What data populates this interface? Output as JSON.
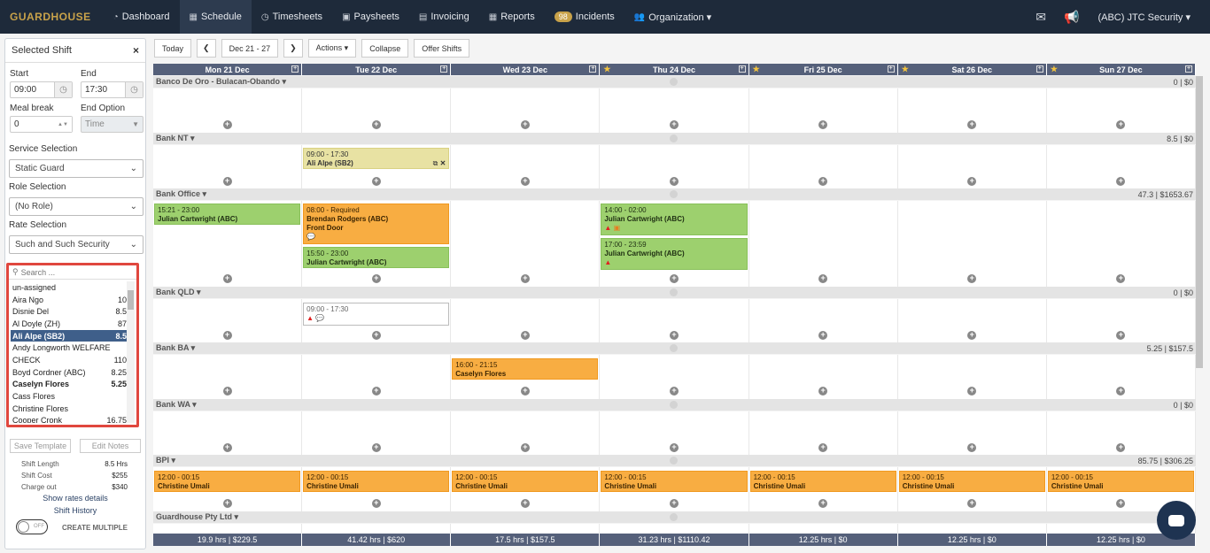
{
  "nav": {
    "logo": "GUARDHOUSE",
    "items": [
      {
        "label": "Dashboard",
        "icon": "dashboard-icon",
        "glyph": "◔"
      },
      {
        "label": "Schedule",
        "icon": "calendar-icon",
        "glyph": "▦"
      },
      {
        "label": "Timesheets",
        "icon": "clock-icon",
        "glyph": "◷"
      },
      {
        "label": "Paysheets",
        "icon": "money-icon",
        "glyph": "▣"
      },
      {
        "label": "Invoicing",
        "icon": "invoice-icon",
        "glyph": "▤"
      },
      {
        "label": "Reports",
        "icon": "table-icon",
        "glyph": "▦"
      },
      {
        "label": "Incidents",
        "badge": "98"
      },
      {
        "label": "Organization ▾",
        "icon": "users-icon",
        "glyph": "👥"
      }
    ],
    "company": "(ABC) JTC Security ▾"
  },
  "sidebar": {
    "title": "Selected Shift",
    "start_label": "Start",
    "start": "09:00",
    "end_label": "End",
    "end": "17:30",
    "meal_label": "Meal break",
    "meal": "0",
    "endopt_label": "End Option",
    "endopt": "Time",
    "service_label": "Service Selection",
    "service": "Static Guard",
    "role_label": "Role Selection",
    "role": "(No Role)",
    "rate_label": "Rate Selection",
    "rate": "Such and Such Security",
    "search_placeholder": "Search ...",
    "employees": [
      {
        "name": "un-assigned",
        "hours": ""
      },
      {
        "name": "Aira Ngo",
        "hours": "10"
      },
      {
        "name": "Disnie Del",
        "hours": "8.5"
      },
      {
        "name": "Al Doyle (ZH)",
        "hours": "87"
      },
      {
        "name": "Ali Alpe (SB2)",
        "hours": "8.5",
        "selected": true
      },
      {
        "name": "Andy Longworth WELFARE",
        "hours": ""
      },
      {
        "name": "CHECK",
        "hours": "110"
      },
      {
        "name": "Boyd Cordner (ABC)",
        "hours": "8.25"
      },
      {
        "name": "Caselyn Flores",
        "hours": "5.25",
        "bold": true
      },
      {
        "name": "Cass Flores",
        "hours": ""
      },
      {
        "name": "Christine Flores",
        "hours": ""
      },
      {
        "name": "Cooper Cronk",
        "hours": "16.75"
      }
    ],
    "save_template": "Save Template",
    "edit_notes": "Edit Notes",
    "shift_length_label": "Shift Length",
    "shift_length": "8.5 Hrs",
    "shift_cost_label": "Shift Cost",
    "shift_cost": "$255",
    "charge_label": "Charge out",
    "charge": "$340",
    "show_rates": "Show rates details",
    "history": "Shift History",
    "toggle": "OFF",
    "create_multiple": "CREATE MULTIPLE"
  },
  "toolbar": {
    "today": "Today",
    "range": "Dec 21 - 27",
    "actions": "Actions ▾",
    "collapse": "Collapse",
    "offer": "Offer Shifts"
  },
  "days": [
    {
      "label": "Mon 21 Dec",
      "star": false
    },
    {
      "label": "Tue 22 Dec",
      "star": false
    },
    {
      "label": "Wed 23 Dec",
      "star": false
    },
    {
      "label": "Thu 24 Dec",
      "star": true
    },
    {
      "label": "Fri 25 Dec",
      "star": true
    },
    {
      "label": "Sat 26 Dec",
      "star": true
    },
    {
      "label": "Sun 27 Dec",
      "star": true
    }
  ],
  "groups": [
    {
      "name": "Banco De Oro - Bulacan-Obando ▾",
      "total": "0 | $0"
    },
    {
      "name": "Bank NT ▾",
      "total": "8.5 | $0"
    },
    {
      "name": "Bank Office ▾",
      "total": "47.3 | $1653.67"
    },
    {
      "name": "Bank QLD ▾",
      "total": "0 | $0"
    },
    {
      "name": "Bank BA ▾",
      "total": "5.25 | $157.5"
    },
    {
      "name": "Bank WA ▾",
      "total": "0 | $0"
    },
    {
      "name": "BPI ▾",
      "total": "85.75 | $306.25"
    },
    {
      "name": "Guardhouse Pty Ltd ▾",
      "total": ""
    }
  ],
  "shifts": {
    "nt_tue": {
      "time": "09:00 - 17:30",
      "name": "Ali Alpe (SB2)"
    },
    "office_mon": {
      "time": "15:21 - 23:00",
      "name": "Julian Cartwright (ABC)"
    },
    "office_tue1": {
      "time": "08:00 - Required",
      "name": "Brendan Rodgers (ABC)",
      "note": "Front Door"
    },
    "office_tue2": {
      "time": "15:50 - 23:00",
      "name": "Julian Cartwright (ABC)"
    },
    "office_thu1": {
      "time": "14:00 - 02:00",
      "name": "Julian Cartwright (ABC)"
    },
    "office_thu2": {
      "time": "17:00 - 23:59",
      "name": "Julian Cartwright (ABC)"
    },
    "qld_tue": {
      "time": "09:00 - 17:30"
    },
    "ba_wed": {
      "time": "16:00 - 21:15",
      "name": "Caselyn Flores"
    },
    "bpi": {
      "time": "12:00 - 00:15",
      "name": "Christine Umali"
    }
  },
  "footer": [
    "19.9 hrs   | $229.5",
    "41.42 hrs   | $620",
    "17.5 hrs   | $157.5",
    "31.23 hrs   | $1110.42",
    "12.25 hrs   | $0",
    "12.25 hrs   | $0",
    "12.25 hrs   | $0"
  ]
}
